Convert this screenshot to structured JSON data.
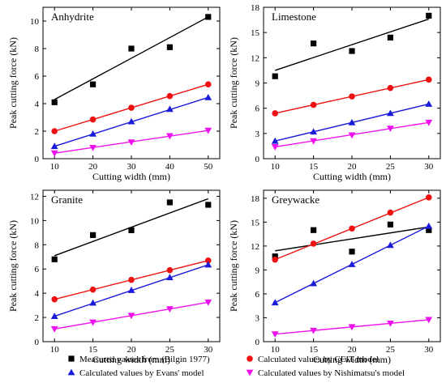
{
  "chart_data": [
    {
      "type": "scatter",
      "title": "Anhydrite",
      "xlabel": "Cutting width (mm)",
      "ylabel": "Peak cutting force (kN)",
      "xlim": [
        7,
        53
      ],
      "ylim": [
        0,
        11
      ],
      "xticks": [
        10,
        20,
        30,
        40,
        50
      ],
      "yticks": [
        0,
        2,
        4,
        6,
        8,
        10
      ],
      "x": [
        10,
        20,
        30,
        40,
        50
      ],
      "series": [
        {
          "values": [
            4.1,
            5.4,
            8.0,
            8.1,
            10.3
          ],
          "fit": [
            [
              10,
              4.3
            ],
            [
              50,
              10.3
            ]
          ]
        },
        {
          "values": [
            2.0,
            2.85,
            3.7,
            4.55,
            5.4
          ],
          "fit": [
            [
              10,
              2.0
            ],
            [
              50,
              5.4
            ]
          ]
        },
        {
          "values": [
            0.9,
            1.8,
            2.7,
            3.6,
            4.45
          ],
          "fit": [
            [
              10,
              0.9
            ],
            [
              50,
              4.45
            ]
          ]
        },
        {
          "values": [
            0.4,
            0.8,
            1.2,
            1.65,
            2.05
          ],
          "fit": [
            [
              10,
              0.4
            ],
            [
              50,
              2.05
            ]
          ]
        }
      ]
    },
    {
      "type": "scatter",
      "title": "Limestone",
      "xlabel": "Cutting width (mm)",
      "ylabel": "Peak cutting force (kN)",
      "xlim": [
        8.5,
        31.5
      ],
      "ylim": [
        0,
        18
      ],
      "xticks": [
        10,
        15,
        20,
        25,
        30
      ],
      "yticks": [
        0,
        3,
        6,
        9,
        12,
        15,
        18
      ],
      "x": [
        10,
        15,
        20,
        25,
        30
      ],
      "series": [
        {
          "values": [
            9.8,
            13.7,
            12.8,
            14.4,
            17.0
          ],
          "fit": [
            [
              10,
              10.5
            ],
            [
              30,
              16.6
            ]
          ]
        },
        {
          "values": [
            5.4,
            6.4,
            7.4,
            8.4,
            9.4
          ],
          "fit": [
            [
              10,
              5.4
            ],
            [
              30,
              9.4
            ]
          ]
        },
        {
          "values": [
            2.1,
            3.2,
            4.3,
            5.4,
            6.5
          ],
          "fit": [
            [
              10,
              2.1
            ],
            [
              30,
              6.5
            ]
          ]
        },
        {
          "values": [
            1.4,
            2.1,
            2.8,
            3.6,
            4.3
          ],
          "fit": [
            [
              10,
              1.4
            ],
            [
              30,
              4.3
            ]
          ]
        }
      ]
    },
    {
      "type": "scatter",
      "title": "Granite",
      "xlabel": "Cutting width (mm)",
      "ylabel": "Peak cutting force (kN)",
      "xlim": [
        8.5,
        31.5
      ],
      "ylim": [
        0,
        12.5
      ],
      "xticks": [
        10,
        15,
        20,
        25,
        30
      ],
      "yticks": [
        0,
        2,
        4,
        6,
        8,
        10,
        12
      ],
      "x": [
        10,
        15,
        20,
        25,
        30
      ],
      "series": [
        {
          "values": [
            6.8,
            8.8,
            9.2,
            11.5,
            11.3
          ],
          "fit": [
            [
              10,
              7.1
            ],
            [
              30,
              11.8
            ]
          ]
        },
        {
          "values": [
            3.5,
            4.3,
            5.1,
            5.9,
            6.7
          ],
          "fit": [
            [
              10,
              3.5
            ],
            [
              30,
              6.7
            ]
          ]
        },
        {
          "values": [
            2.1,
            3.2,
            4.25,
            5.3,
            6.35
          ],
          "fit": [
            [
              10,
              2.1
            ],
            [
              30,
              6.35
            ]
          ]
        },
        {
          "values": [
            1.05,
            1.6,
            2.15,
            2.7,
            3.25
          ],
          "fit": [
            [
              10,
              1.05
            ],
            [
              30,
              3.25
            ]
          ]
        }
      ]
    },
    {
      "type": "scatter",
      "title": "Greywacke",
      "xlabel": "Cutting width (mm)",
      "ylabel": "Peak cutting force (kN)",
      "xlim": [
        8.5,
        31.5
      ],
      "ylim": [
        0,
        19
      ],
      "xticks": [
        10,
        15,
        20,
        25,
        30
      ],
      "yticks": [
        0,
        3,
        6,
        9,
        12,
        15,
        18
      ],
      "x": [
        10,
        15,
        20,
        25,
        30
      ],
      "series": [
        {
          "values": [
            10.7,
            14.0,
            11.3,
            14.7,
            14.0
          ],
          "fit": [
            [
              10,
              11.4
            ],
            [
              30,
              14.4
            ]
          ]
        },
        {
          "values": [
            10.3,
            12.3,
            14.2,
            16.2,
            18.1
          ],
          "fit": [
            [
              10,
              10.3
            ],
            [
              30,
              18.1
            ]
          ]
        },
        {
          "values": [
            4.9,
            7.3,
            9.7,
            12.1,
            14.5
          ],
          "fit": [
            [
              10,
              4.9
            ],
            [
              30,
              14.5
            ]
          ]
        },
        {
          "values": [
            0.95,
            1.4,
            1.85,
            2.3,
            2.75
          ],
          "fit": [
            [
              10,
              0.95
            ],
            [
              30,
              2.75
            ]
          ]
        }
      ]
    }
  ],
  "legend": {
    "placement": "bottom",
    "entries": [
      {
        "label": "Measured values from (Bilgin 1977)",
        "color": "#000000",
        "marker": "square"
      },
      {
        "label": "Calculated values by CEIT model",
        "color": "#ee1111",
        "marker": "circle"
      },
      {
        "label": "Calculated values by  Evans' model",
        "color": "#1a1adb",
        "marker": "triangle-up"
      },
      {
        "label": "Calculated values by Nishimatsu's model",
        "color": "#ee11ee",
        "marker": "triangle-down"
      }
    ]
  },
  "series_colors": [
    "#000000",
    "#ee1111",
    "#1a1adb",
    "#ee11ee"
  ]
}
